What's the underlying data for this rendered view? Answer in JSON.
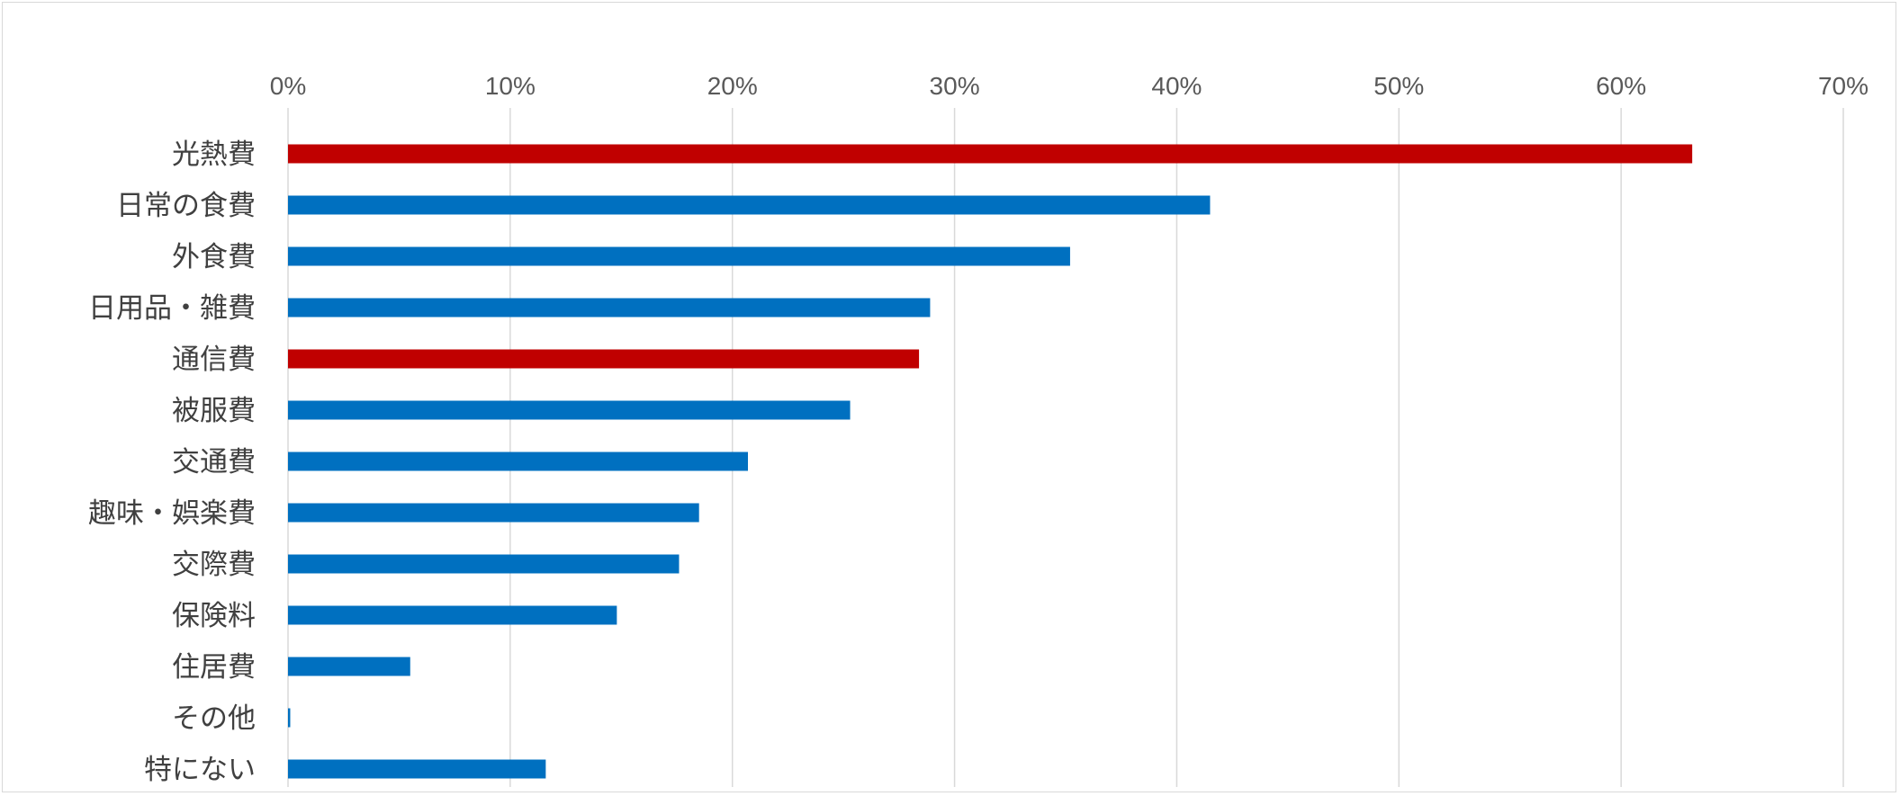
{
  "chart_data": {
    "type": "bar",
    "orientation": "horizontal",
    "categories": [
      "光熱費",
      "日常の食費",
      "外食費",
      "日用品・雑費",
      "通信費",
      "被服費",
      "交通費",
      "趣味・娯楽費",
      "交際費",
      "保険料",
      "住居費",
      "その他",
      "特にない"
    ],
    "values": [
      63.2,
      41.5,
      35.2,
      28.9,
      28.4,
      25.3,
      20.7,
      18.5,
      17.6,
      14.8,
      5.5,
      0.1,
      11.6
    ],
    "bar_colors": [
      "#c00000",
      "#0070c0",
      "#0070c0",
      "#0070c0",
      "#c00000",
      "#0070c0",
      "#0070c0",
      "#0070c0",
      "#0070c0",
      "#0070c0",
      "#0070c0",
      "#0070c0",
      "#0070c0"
    ],
    "xlim": [
      0,
      70
    ],
    "xticks": [
      0,
      10,
      20,
      30,
      40,
      50,
      60,
      70
    ],
    "xtick_labels": [
      "0%",
      "10%",
      "20%",
      "30%",
      "40%",
      "50%",
      "60%",
      "70%"
    ],
    "x_axis_position": "top",
    "grid": true,
    "legend": "none",
    "colors": {
      "highlight": "#c00000",
      "default": "#0070c0",
      "grid": "#d9d9d9"
    }
  }
}
